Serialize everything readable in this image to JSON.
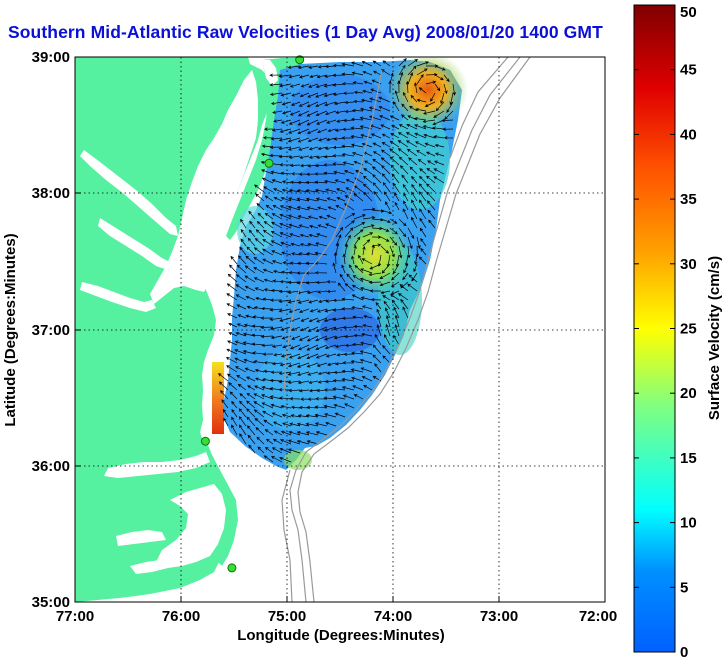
{
  "title": "Southern Mid-Atlantic Raw Velocities (1 Day Avg) 2008/01/20 1400 GMT",
  "map": {
    "x_axis_label": "Longitude (Degrees:Minutes)",
    "y_axis_label": "Latitude (Degrees:Minutes)",
    "x_ticks": [
      "77:00",
      "76:00",
      "75:00",
      "74:00",
      "73:00",
      "72:00"
    ],
    "y_ticks": [
      "39:00",
      "38:00",
      "37:00",
      "36:00",
      "35:00"
    ],
    "lon_range": [
      -77,
      -72
    ],
    "lat_range": [
      35,
      39
    ],
    "land_color": "#55f0a0",
    "ocean_color": "#ffffff",
    "grid": "dotted"
  },
  "colorbar": {
    "label": "Surface Velocity (cm/s)",
    "ticks": [
      "0",
      "5",
      "10",
      "15",
      "20",
      "25",
      "30",
      "35",
      "40",
      "45",
      "50"
    ],
    "range": [
      0,
      50
    ],
    "colormap": "jet"
  },
  "stations": [
    {
      "lon": -74.88,
      "lat": 38.98
    },
    {
      "lon": -75.17,
      "lat": 38.22
    },
    {
      "lon": -75.77,
      "lat": 36.18
    },
    {
      "lon": -75.52,
      "lat": 35.25
    }
  ]
}
